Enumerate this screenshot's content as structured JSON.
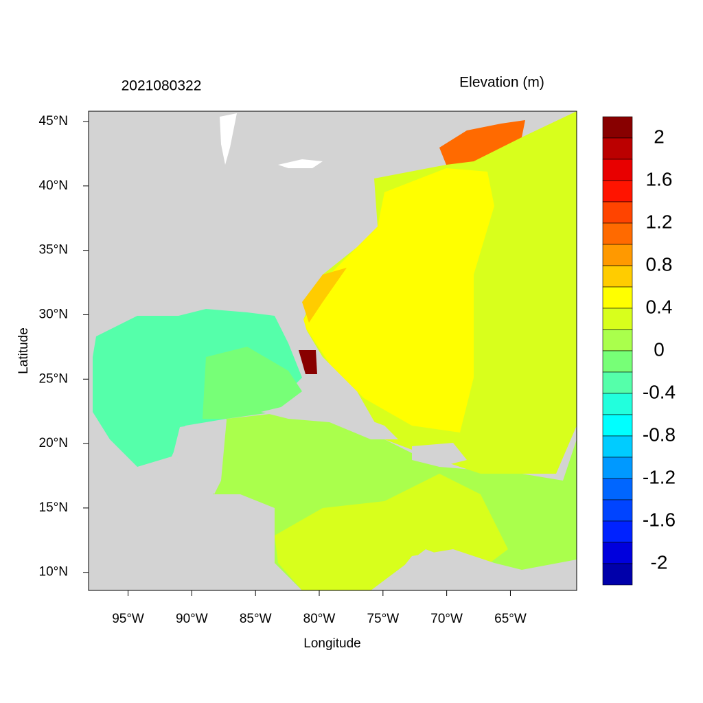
{
  "title": "2021080322",
  "variable": "Elevation (m)",
  "map": {
    "xlabel": "Longitude",
    "ylabel": "Latitude",
    "xlim": [
      -98.1,
      -59.8
    ],
    "ylim": [
      8.6,
      45.8
    ],
    "xticks": [
      {
        "value": -95,
        "label": "95°W"
      },
      {
        "value": -90,
        "label": "90°W"
      },
      {
        "value": -85,
        "label": "85°W"
      },
      {
        "value": -80,
        "label": "80°W"
      },
      {
        "value": -75,
        "label": "75°W"
      },
      {
        "value": -70,
        "label": "70°W"
      },
      {
        "value": -65,
        "label": "65°W"
      }
    ],
    "yticks": [
      {
        "value": 10,
        "label": "10°N"
      },
      {
        "value": 15,
        "label": "15°N"
      },
      {
        "value": 20,
        "label": "20°N"
      },
      {
        "value": 25,
        "label": "25°N"
      },
      {
        "value": 30,
        "label": "30°N"
      },
      {
        "value": 35,
        "label": "35°N"
      },
      {
        "value": 40,
        "label": "40°N"
      },
      {
        "value": 45,
        "label": "45°N"
      }
    ]
  },
  "colorbar": {
    "clim": [
      -2.2,
      2.2
    ],
    "ticks": [
      2,
      1.6,
      1.2,
      0.8,
      0.4,
      0,
      -0.4,
      -0.8,
      -1.2,
      -1.6,
      -2
    ],
    "colors": [
      "#880000",
      "#bb0000",
      "#e80000",
      "#ff1400",
      "#ff4400",
      "#ff6a00",
      "#ff9900",
      "#ffcc00",
      "#ffff00",
      "#d8ff1c",
      "#aaff4c",
      "#77ff77",
      "#55ffaa",
      "#22ffdd",
      "#00ffff",
      "#00ccff",
      "#0099ff",
      "#0066ff",
      "#0044ff",
      "#0022ff",
      "#0000dd",
      "#0000aa"
    ]
  }
}
